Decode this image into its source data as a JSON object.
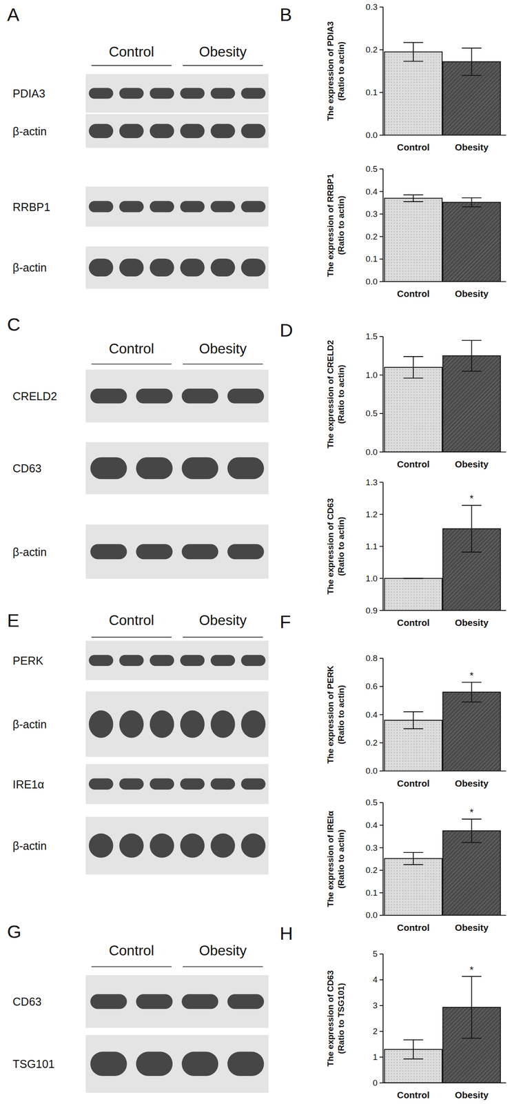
{
  "chart_letters": [
    "B",
    "D",
    "F",
    "H"
  ],
  "blots": [
    {
      "letter": "A",
      "groups": [
        "Control",
        "Obesity"
      ],
      "lanes_per_group": 3,
      "rows": [
        "PDIA3",
        "β-actin",
        "RRBP1",
        "β-actin"
      ]
    },
    {
      "letter": "C",
      "groups": [
        "Control",
        "Obesity"
      ],
      "lanes_per_group": 2,
      "rows": [
        "CRELD2",
        "CD63",
        "β-actin"
      ]
    },
    {
      "letter": "E",
      "groups": [
        "Control",
        "Obesity"
      ],
      "lanes_per_group": 3,
      "rows": [
        "PERK",
        "β-actin",
        "IRE1α",
        "β-actin"
      ]
    },
    {
      "letter": "G",
      "groups": [
        "Control",
        "Obesity"
      ],
      "lanes_per_group": 2,
      "rows": [
        "CD63",
        "TSG101"
      ]
    }
  ],
  "chart_data": [
    {
      "type": "bar",
      "ylabel": [
        "The expression of PDIA3",
        "(Ratio to actin)"
      ],
      "categories": [
        "Control",
        "Obesity"
      ],
      "values": [
        0.195,
        0.172
      ],
      "errors": [
        0.022,
        0.032
      ],
      "colors": [
        "#d9d9d9",
        "#505050"
      ],
      "ylim": [
        0,
        0.3
      ],
      "yticks": [
        {
          "value": 0,
          "label": "0.0"
        },
        0.1,
        0.2,
        0.3
      ],
      "significance": [
        null,
        null
      ]
    },
    {
      "type": "bar",
      "ylabel": [
        "The expression of RRBP1",
        "(Ratio to actin)"
      ],
      "categories": [
        "Control",
        "Obesity"
      ],
      "values": [
        0.37,
        0.352
      ],
      "errors": [
        0.015,
        0.02
      ],
      "colors": [
        "#d9d9d9",
        "#505050"
      ],
      "ylim": [
        0,
        0.5
      ],
      "yticks": [
        {
          "value": 0,
          "label": "0.0"
        },
        0.1,
        0.2,
        0.3,
        0.4,
        0.5
      ],
      "significance": [
        null,
        null
      ]
    },
    {
      "type": "bar",
      "ylabel": [
        "The expression of CRELD2",
        "(Ratio to actin)"
      ],
      "categories": [
        "Control",
        "Obesity"
      ],
      "values": [
        1.1,
        1.25
      ],
      "errors": [
        0.14,
        0.2
      ],
      "colors": [
        "#d9d9d9",
        "#505050"
      ],
      "ylim": [
        0,
        1.5
      ],
      "yticks": [
        {
          "value": 0,
          "label": "0.0"
        },
        0.5,
        {
          "value": 1,
          "label": "1.0"
        },
        1.5
      ],
      "significance": [
        null,
        null
      ]
    },
    {
      "type": "bar",
      "ylabel": [
        "The expression of CD63",
        "(Ratio to actin)"
      ],
      "categories": [
        "Control",
        "Obesity"
      ],
      "values": [
        1.0,
        1.155
      ],
      "errors": [
        0,
        0.073
      ],
      "colors": [
        "#d9d9d9",
        "#505050"
      ],
      "ylim": [
        0.9,
        1.3
      ],
      "yticks": [
        0.9,
        {
          "value": 1,
          "label": "1.0"
        },
        1.1,
        1.2,
        1.3
      ],
      "significance": [
        null,
        "*"
      ]
    },
    {
      "type": "bar",
      "ylabel": [
        "The expression of PERK",
        "(Ratio to actin)"
      ],
      "categories": [
        "Control",
        "Obesity"
      ],
      "values": [
        0.36,
        0.56
      ],
      "errors": [
        0.06,
        0.07
      ],
      "colors": [
        "#d9d9d9",
        "#505050"
      ],
      "ylim": [
        0,
        0.8
      ],
      "yticks": [
        {
          "value": 0,
          "label": "0.0"
        },
        0.2,
        0.4,
        0.6,
        0.8
      ],
      "significance": [
        null,
        "*"
      ]
    },
    {
      "type": "bar",
      "ylabel": [
        "The expression of IREIα",
        "(Ratio to actin)"
      ],
      "categories": [
        "Control",
        "Obesity"
      ],
      "values": [
        0.252,
        0.375
      ],
      "errors": [
        0.027,
        0.052
      ],
      "colors": [
        "#d9d9d9",
        "#505050"
      ],
      "ylim": [
        0,
        0.5
      ],
      "yticks": [
        {
          "value": 0,
          "label": "0.0"
        },
        0.1,
        0.2,
        0.3,
        0.4,
        0.5
      ],
      "significance": [
        null,
        "*"
      ]
    },
    {
      "type": "bar",
      "ylabel": [
        "The expression of CD63",
        "(Ratio to TSG101)"
      ],
      "categories": [
        "Control",
        "Obesity"
      ],
      "values": [
        1.3,
        2.93
      ],
      "errors": [
        0.37,
        1.2
      ],
      "colors": [
        "#d9d9d9",
        "#505050"
      ],
      "ylim": [
        0,
        5
      ],
      "yticks": [
        0,
        1,
        2,
        3,
        4,
        5
      ],
      "significance": [
        null,
        "*"
      ]
    }
  ]
}
